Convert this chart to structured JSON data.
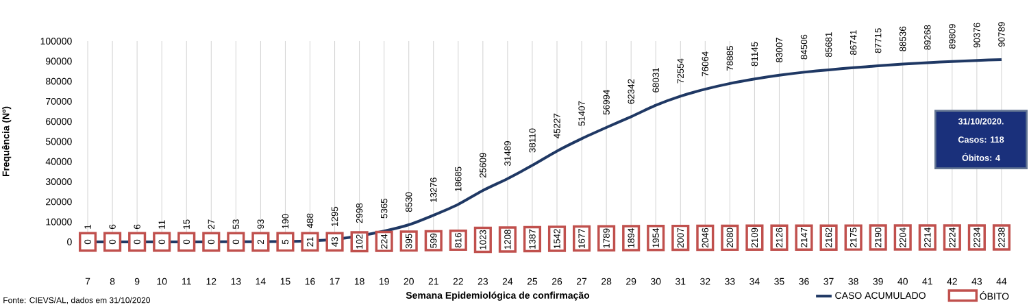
{
  "chart_data": {
    "type": "line",
    "xlabel": "Semana Epidemiológica de confirmação",
    "ylabel": "Frequência (Nº)",
    "categories": [
      "7",
      "8",
      "9",
      "10",
      "11",
      "12",
      "13",
      "14",
      "15",
      "16",
      "17",
      "18",
      "19",
      "20",
      "21",
      "22",
      "23",
      "24",
      "25",
      "26",
      "27",
      "28",
      "29",
      "30",
      "31",
      "32",
      "33",
      "34",
      "35",
      "36",
      "37",
      "38",
      "39",
      "40",
      "41",
      "42",
      "43",
      "44"
    ],
    "series": [
      {
        "name": "CASO ACUMULADO",
        "color": "#1f3864",
        "values": [
          1,
          6,
          6,
          11,
          15,
          27,
          53,
          93,
          190,
          488,
          1295,
          2998,
          5365,
          8530,
          13276,
          18685,
          25609,
          31489,
          38110,
          45227,
          51407,
          56994,
          62342,
          68031,
          72554,
          76064,
          78885,
          81145,
          83007,
          84506,
          85681,
          86741,
          87715,
          88536,
          89268,
          89809,
          90376,
          90789
        ]
      },
      {
        "name": "ÓBITO",
        "type": "scatter",
        "color": "#c0504d",
        "values": [
          0,
          0,
          0,
          0,
          0,
          0,
          0,
          2,
          5,
          21,
          43,
          102,
          224,
          395,
          599,
          816,
          1023,
          1208,
          1387,
          1542,
          1677,
          1789,
          1894,
          1954,
          2007,
          2046,
          2080,
          2109,
          2126,
          2147,
          2162,
          2175,
          2190,
          2204,
          2214,
          2224,
          2234,
          2238
        ]
      }
    ],
    "ylim": [
      0,
      100000
    ],
    "yticks": [
      0,
      10000,
      20000,
      30000,
      40000,
      50000,
      60000,
      70000,
      80000,
      90000,
      100000
    ],
    "grid": "x",
    "legend": "bottom right",
    "data_labels": true,
    "annotations": [
      "31/10/2020.",
      "Casos: 118",
      "Óbitos: 4",
      "Fonte: CIEVS/AL, dados em 31/10/2020"
    ]
  }
}
